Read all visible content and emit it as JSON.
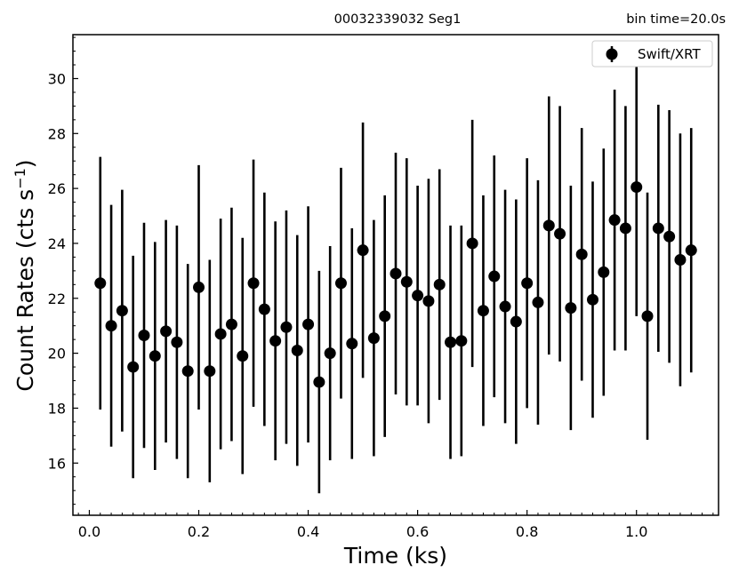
{
  "chart_data": {
    "type": "scatter",
    "title_left": "00032339032  Seg1",
    "title_right": "bin time=20.0s",
    "xlabel": "Time (ks)",
    "ylabel_main": "Count Rates (cts s",
    "ylabel_sup": "−1",
    "ylabel_end": ")",
    "xlim": [
      -0.03,
      1.15
    ],
    "ylim": [
      14.1,
      31.6
    ],
    "xticks": [
      0.0,
      0.2,
      0.4,
      0.6,
      0.8,
      1.0
    ],
    "xtick_labels": [
      "0.0",
      "0.2",
      "0.4",
      "0.6",
      "0.8",
      "1.0"
    ],
    "yticks": [
      16,
      18,
      20,
      22,
      24,
      26,
      28,
      30
    ],
    "ytick_labels": [
      "16",
      "18",
      "20",
      "22",
      "24",
      "26",
      "28",
      "30"
    ],
    "marker_color": "#000000",
    "legend": {
      "label": "Swift/XRT",
      "position": "top-right"
    },
    "series": [
      {
        "name": "Swift/XRT",
        "x": [
          0.02,
          0.04,
          0.06,
          0.08,
          0.1,
          0.12,
          0.14,
          0.16,
          0.18,
          0.2,
          0.22,
          0.24,
          0.26,
          0.28,
          0.3,
          0.32,
          0.34,
          0.36,
          0.38,
          0.4,
          0.42,
          0.44,
          0.46,
          0.48,
          0.5,
          0.52,
          0.54,
          0.56,
          0.58,
          0.6,
          0.62,
          0.64,
          0.66,
          0.68,
          0.7,
          0.72,
          0.74,
          0.76,
          0.78,
          0.8,
          0.82,
          0.84,
          0.86,
          0.88,
          0.9,
          0.92,
          0.94,
          0.96,
          0.98,
          1.0,
          1.02,
          1.04,
          1.06,
          1.08,
          1.1
        ],
        "y": [
          22.55,
          21.0,
          21.55,
          19.5,
          20.65,
          19.9,
          20.8,
          20.4,
          19.35,
          22.4,
          19.35,
          20.7,
          21.05,
          19.9,
          22.55,
          21.6,
          20.45,
          20.95,
          20.1,
          21.05,
          18.95,
          20.0,
          22.55,
          20.35,
          23.75,
          20.55,
          21.35,
          22.9,
          22.6,
          22.1,
          21.9,
          22.5,
          20.4,
          20.45,
          24.0,
          21.55,
          22.8,
          21.7,
          21.15,
          22.55,
          21.85,
          24.65,
          24.35,
          21.65,
          23.6,
          21.95,
          22.95,
          24.85,
          24.55,
          26.05,
          21.35,
          24.55,
          24.25,
          23.4,
          23.75
        ],
        "yerr": [
          4.6,
          4.4,
          4.4,
          4.05,
          4.1,
          4.15,
          4.05,
          4.25,
          3.9,
          4.45,
          4.05,
          4.2,
          4.25,
          4.3,
          4.5,
          4.25,
          4.35,
          4.25,
          4.2,
          4.3,
          4.05,
          3.9,
          4.2,
          4.2,
          4.65,
          4.3,
          4.4,
          4.4,
          4.5,
          4.0,
          4.45,
          4.2,
          4.25,
          4.2,
          4.5,
          4.2,
          4.4,
          4.25,
          4.45,
          4.55,
          4.45,
          4.7,
          4.65,
          4.45,
          4.6,
          4.3,
          4.5,
          4.75,
          4.45,
          4.7,
          4.5,
          4.5,
          4.6,
          4.6,
          4.45
        ]
      }
    ]
  }
}
